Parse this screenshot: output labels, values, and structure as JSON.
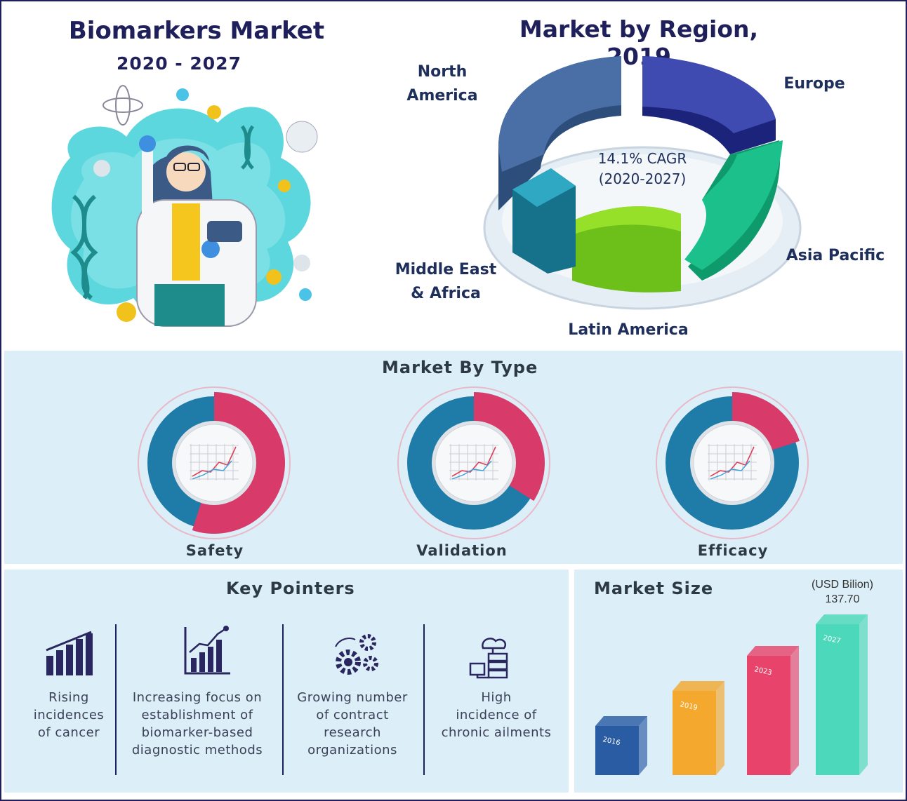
{
  "header": {
    "main_title": "Biomarkers Market",
    "period": "2020 - 2027",
    "region_title": "Market by Region, 2019",
    "cagr_line1": "14.1% CAGR",
    "cagr_line2": "(2020-2027)"
  },
  "regions": [
    {
      "name": "North America",
      "line1": "North",
      "line2": "America",
      "color": "#3f5f8f"
    },
    {
      "name": "Europe",
      "line1": "Europe",
      "line2": "",
      "color": "#2a3595"
    },
    {
      "name": "Asia Pacific",
      "line1": "Asia Pacific",
      "line2": "",
      "color": "#17b483"
    },
    {
      "name": "Latin America",
      "line1": "Latin America",
      "line2": "",
      "color": "#7fd41a"
    },
    {
      "name": "Middle East & Africa",
      "line1": "Middle East",
      "line2": "& Africa",
      "color": "#1f90a8"
    }
  ],
  "type_section": {
    "title": "Market By Type",
    "items": [
      {
        "label": "Safety",
        "share": 0.55
      },
      {
        "label": "Validation",
        "share": 0.34
      },
      {
        "label": "Efficacy",
        "share": 0.2
      }
    ],
    "colors": {
      "highlight": "#d83a6a",
      "base": "#1f7ba8"
    }
  },
  "key_pointers": {
    "title": "Key Pointers",
    "items": [
      {
        "icon": "bar-chart-icon",
        "text": [
          "Rising",
          "incidences",
          "of cancer"
        ]
      },
      {
        "icon": "trend-chart-icon",
        "text": [
          "Increasing focus on",
          "establishment of",
          "biomarker-based",
          "diagnostic methods"
        ]
      },
      {
        "icon": "gears-icon",
        "text": [
          "Growing number",
          "of contract",
          "research",
          "organizations"
        ]
      },
      {
        "icon": "cloud-server-icon",
        "text": [
          "High",
          "incidence of",
          "chronic ailments"
        ]
      }
    ]
  },
  "market_size": {
    "title": "Market Size",
    "unit": "(USD Bilion)",
    "value_label": "137.70"
  },
  "chart_data": [
    {
      "type": "pie",
      "title": "Market by Region, 2019",
      "categories": [
        "North America",
        "Europe",
        "Asia Pacific",
        "Latin America",
        "Middle East & Africa"
      ],
      "annotation": "14.1% CAGR (2020-2027)"
    },
    {
      "type": "pie",
      "title": "Market By Type",
      "categories": [
        "Safety",
        "Validation",
        "Efficacy"
      ],
      "values": [
        0.55,
        0.34,
        0.2
      ]
    },
    {
      "type": "bar",
      "title": "Market Size",
      "ylabel": "(USD Bilion)",
      "categories": [
        "2016",
        "2019",
        "2023",
        "2027"
      ],
      "values": [
        null,
        null,
        null,
        137.7
      ],
      "colors": [
        "#1a4f9c",
        "#f5a21c",
        "#e8345e",
        "#3fd6b4"
      ]
    }
  ]
}
